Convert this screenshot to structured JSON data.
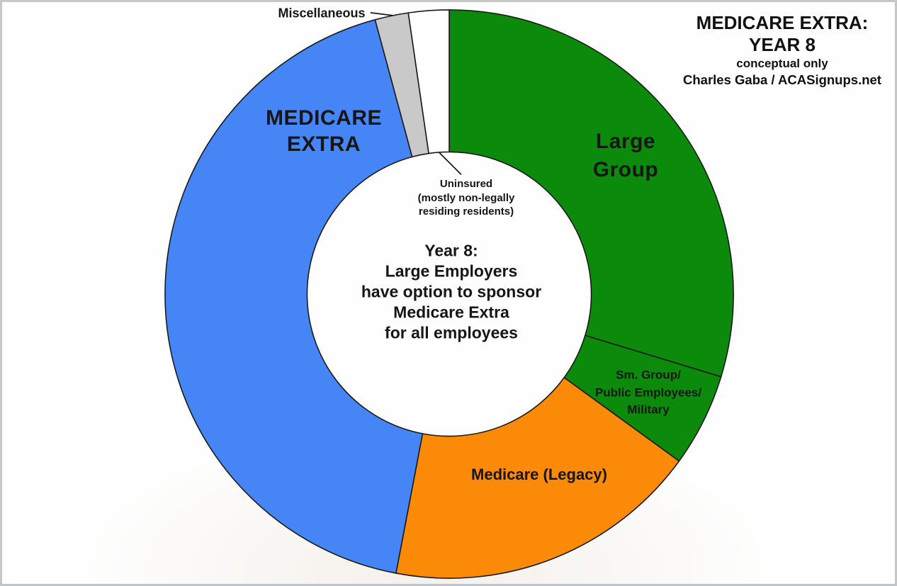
{
  "header": {
    "title_line1": "MEDICARE EXTRA:",
    "title_line2": "YEAR 8",
    "subtitle": "conceptual only",
    "credit": "Charles Gaba / ACASignups.net"
  },
  "center_note": {
    "lines": [
      "Year 8:",
      "Large Employers",
      "have option to sponsor",
      "Medicare Extra",
      "for all employees"
    ]
  },
  "callouts": {
    "miscellaneous": "Miscellaneous",
    "uninsured_lines": [
      "Uninsured",
      "(mostly non-legally",
      "residing residents)"
    ]
  },
  "segment_labels": {
    "medicare_extra": [
      "MEDICARE",
      "EXTRA"
    ],
    "large_group": [
      "Large",
      "Group"
    ],
    "sm_group": [
      "Sm. Group/",
      "Public Employees/",
      "Military"
    ],
    "medicare_legacy": "Medicare (Legacy)"
  },
  "chart_data": {
    "type": "pie",
    "subtype": "donut",
    "title": "MEDICARE EXTRA: YEAR 8",
    "subtitle": "conceptual only",
    "attribution": "Charles Gaba / ACASignups.net",
    "center_annotation": "Year 8: Large Employers have option to sponsor Medicare Extra for all employees",
    "direction": "clockwise",
    "start_angle_deg": 0,
    "inner_radius_ratio": 0.5,
    "outline_color": "#1a1a1a",
    "segments": [
      {
        "id": "large-group",
        "label": "Large Group",
        "percent": 29.7,
        "color": "#0B8A0B"
      },
      {
        "id": "sm-group-public-employees-military",
        "label": "Sm. Group/Public Employees/Military",
        "percent": 5.3,
        "color": "#0B8A0B"
      },
      {
        "id": "medicare-legacy",
        "label": "Medicare (Legacy)",
        "percent": 18.0,
        "color": "#FA8A08"
      },
      {
        "id": "medicare-extra",
        "label": "MEDICARE EXTRA",
        "percent": 42.8,
        "color": "#4585F5"
      },
      {
        "id": "miscellaneous",
        "label": "Miscellaneous",
        "percent": 1.9,
        "color": "#C9C9C9"
      },
      {
        "id": "uninsured",
        "label": "Uninsured (mostly non-legally residing residents)",
        "percent": 2.3,
        "color": "#FFFFFF"
      }
    ]
  }
}
